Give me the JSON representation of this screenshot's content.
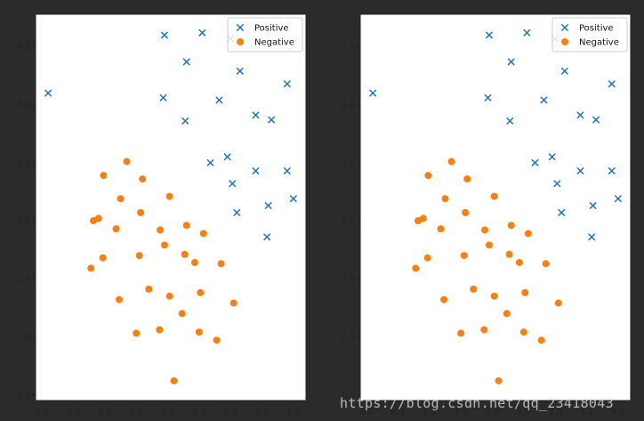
{
  "watermark": "https://blog.csdn.net/qq_23418043",
  "colors": {
    "positive": "#1f77b4",
    "negative": "#ff7f0e",
    "background": "#2b2b2b"
  },
  "chart_data": [
    {
      "type": "scatter",
      "title": "",
      "xlabel": "",
      "ylabel": "",
      "xlim": [
        -0.1,
        4.2
      ],
      "ylim": [
        1.45,
        4.78
      ],
      "xticks": [
        "0.0",
        "0.5",
        "1.0",
        "1.5",
        "2.0",
        "2.5",
        "3.0",
        "3.5",
        "4.0"
      ],
      "yticks": [
        "1.5",
        "2.0",
        "2.5",
        "3.0",
        "3.5",
        "4.0",
        "4.5"
      ],
      "grid": false,
      "legend": "top-right",
      "series": [
        {
          "name": "Positive",
          "marker": "x",
          "points": [
            [
              0.1,
              4.1
            ],
            [
              1.95,
              4.6
            ],
            [
              2.55,
              4.62
            ],
            [
              3.0,
              4.57
            ],
            [
              2.3,
              4.37
            ],
            [
              3.15,
              4.29
            ],
            [
              3.9,
              4.18
            ],
            [
              1.93,
              4.06
            ],
            [
              2.82,
              4.04
            ],
            [
              3.4,
              3.91
            ],
            [
              3.65,
              3.87
            ],
            [
              2.28,
              3.86
            ],
            [
              2.95,
              3.55
            ],
            [
              2.68,
              3.5
            ],
            [
              3.4,
              3.43
            ],
            [
              3.9,
              3.43
            ],
            [
              3.03,
              3.32
            ],
            [
              4.0,
              3.19
            ],
            [
              3.6,
              3.13
            ],
            [
              3.1,
              3.07
            ],
            [
              3.58,
              2.86
            ]
          ]
        },
        {
          "name": "Negative",
          "marker": "o",
          "points": [
            [
              1.35,
              3.51
            ],
            [
              0.98,
              3.39
            ],
            [
              1.6,
              3.36
            ],
            [
              2.03,
              3.21
            ],
            [
              1.25,
              3.19
            ],
            [
              1.57,
              3.07
            ],
            [
              0.82,
              3.0
            ],
            [
              0.9,
              3.02
            ],
            [
              1.18,
              2.93
            ],
            [
              1.88,
              2.92
            ],
            [
              2.3,
              2.96
            ],
            [
              2.57,
              2.89
            ],
            [
              1.95,
              2.79
            ],
            [
              2.27,
              2.71
            ],
            [
              1.55,
              2.7
            ],
            [
              0.97,
              2.68
            ],
            [
              2.43,
              2.64
            ],
            [
              2.85,
              2.63
            ],
            [
              0.78,
              2.59
            ],
            [
              1.7,
              2.41
            ],
            [
              2.52,
              2.38
            ],
            [
              2.03,
              2.35
            ],
            [
              1.23,
              2.32
            ],
            [
              3.05,
              2.29
            ],
            [
              2.23,
              2.2
            ],
            [
              1.87,
              2.06
            ],
            [
              1.5,
              2.03
            ],
            [
              2.5,
              2.04
            ],
            [
              2.78,
              1.97
            ],
            [
              2.1,
              1.62
            ]
          ]
        }
      ]
    },
    {
      "type": "scatter",
      "title": "",
      "xlabel": "",
      "ylabel": "",
      "xlim": [
        -0.1,
        4.2
      ],
      "ylim": [
        1.45,
        4.78
      ],
      "xticks": [
        "0.0",
        "0.5",
        "1.0",
        "1.5",
        "2.0",
        "2.5",
        "3.0",
        "3.5",
        "4.0"
      ],
      "yticks": [
        "1.5",
        "2.0",
        "2.5",
        "3.0",
        "3.5",
        "4.0",
        "4.5"
      ],
      "grid": false,
      "legend": "top-right",
      "series": [
        {
          "name": "Positive",
          "marker": "x",
          "points": [
            [
              0.1,
              4.1
            ],
            [
              1.95,
              4.6
            ],
            [
              2.55,
              4.62
            ],
            [
              3.0,
              4.57
            ],
            [
              2.3,
              4.37
            ],
            [
              3.15,
              4.29
            ],
            [
              3.9,
              4.18
            ],
            [
              1.93,
              4.06
            ],
            [
              2.82,
              4.04
            ],
            [
              3.4,
              3.91
            ],
            [
              3.65,
              3.87
            ],
            [
              2.28,
              3.86
            ],
            [
              2.95,
              3.55
            ],
            [
              2.68,
              3.5
            ],
            [
              3.4,
              3.43
            ],
            [
              3.9,
              3.43
            ],
            [
              3.03,
              3.32
            ],
            [
              4.0,
              3.19
            ],
            [
              3.6,
              3.13
            ],
            [
              3.1,
              3.07
            ],
            [
              3.58,
              2.86
            ]
          ]
        },
        {
          "name": "Negative",
          "marker": "o",
          "points": [
            [
              1.35,
              3.51
            ],
            [
              0.98,
              3.39
            ],
            [
              1.6,
              3.36
            ],
            [
              2.03,
              3.21
            ],
            [
              1.25,
              3.19
            ],
            [
              1.57,
              3.07
            ],
            [
              0.82,
              3.0
            ],
            [
              0.9,
              3.02
            ],
            [
              1.18,
              2.93
            ],
            [
              1.88,
              2.92
            ],
            [
              2.3,
              2.96
            ],
            [
              2.57,
              2.89
            ],
            [
              1.95,
              2.79
            ],
            [
              2.27,
              2.71
            ],
            [
              1.55,
              2.7
            ],
            [
              0.97,
              2.68
            ],
            [
              2.43,
              2.64
            ],
            [
              2.85,
              2.63
            ],
            [
              0.78,
              2.59
            ],
            [
              1.7,
              2.41
            ],
            [
              2.52,
              2.38
            ],
            [
              2.03,
              2.35
            ],
            [
              1.23,
              2.32
            ],
            [
              3.05,
              2.29
            ],
            [
              2.23,
              2.2
            ],
            [
              1.87,
              2.06
            ],
            [
              1.5,
              2.03
            ],
            [
              2.5,
              2.04
            ],
            [
              2.78,
              1.97
            ],
            [
              2.1,
              1.62
            ]
          ]
        }
      ]
    }
  ]
}
